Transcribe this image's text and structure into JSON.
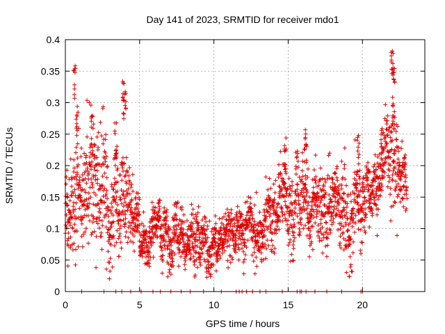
{
  "chart_data": {
    "type": "scatter",
    "title": "Day 141 of 2023, SRMTID for receiver mdo1",
    "xlabel": "GPS time / hours",
    "ylabel": "SRMTID / TECUs",
    "xlim": [
      0,
      24.2
    ],
    "ylim": [
      0,
      0.4
    ],
    "xticks": [
      0,
      5,
      10,
      15,
      20
    ],
    "xtick_labels": [
      "0",
      "5",
      "10",
      "15",
      "20"
    ],
    "yticks": [
      0,
      0.05,
      0.1,
      0.15,
      0.2,
      0.25,
      0.3,
      0.35,
      0.4
    ],
    "ytick_labels": [
      "0",
      "0.05",
      "0.1",
      "0.15",
      "0.2",
      "0.25",
      "0.3",
      "0.35",
      "0.4"
    ],
    "grid": true,
    "marker": "+",
    "color": "#e00000",
    "trend": [
      {
        "x": 0.0,
        "mean": 0.12,
        "spread": 0.04
      },
      {
        "x": 0.5,
        "mean": 0.16,
        "spread": 0.08
      },
      {
        "x": 1.0,
        "mean": 0.17,
        "spread": 0.07
      },
      {
        "x": 1.5,
        "mean": 0.18,
        "spread": 0.08
      },
      {
        "x": 2.0,
        "mean": 0.19,
        "spread": 0.08
      },
      {
        "x": 2.5,
        "mean": 0.16,
        "spread": 0.07
      },
      {
        "x": 3.0,
        "mean": 0.17,
        "spread": 0.08
      },
      {
        "x": 3.5,
        "mean": 0.19,
        "spread": 0.08
      },
      {
        "x": 4.0,
        "mean": 0.17,
        "spread": 0.06
      },
      {
        "x": 4.5,
        "mean": 0.11,
        "spread": 0.04
      },
      {
        "x": 5.0,
        "mean": 0.09,
        "spread": 0.03
      },
      {
        "x": 6.0,
        "mean": 0.09,
        "spread": 0.03
      },
      {
        "x": 7.0,
        "mean": 0.09,
        "spread": 0.035
      },
      {
        "x": 8.0,
        "mean": 0.07,
        "spread": 0.035
      },
      {
        "x": 9.0,
        "mean": 0.085,
        "spread": 0.035
      },
      {
        "x": 10.0,
        "mean": 0.075,
        "spread": 0.03
      },
      {
        "x": 11.0,
        "mean": 0.09,
        "spread": 0.03
      },
      {
        "x": 12.0,
        "mean": 0.095,
        "spread": 0.03
      },
      {
        "x": 13.0,
        "mean": 0.1,
        "spread": 0.035
      },
      {
        "x": 14.0,
        "mean": 0.13,
        "spread": 0.04
      },
      {
        "x": 15.0,
        "mean": 0.14,
        "spread": 0.05
      },
      {
        "x": 16.0,
        "mean": 0.15,
        "spread": 0.05
      },
      {
        "x": 17.0,
        "mean": 0.13,
        "spread": 0.05
      },
      {
        "x": 18.0,
        "mean": 0.14,
        "spread": 0.045
      },
      {
        "x": 19.0,
        "mean": 0.13,
        "spread": 0.05
      },
      {
        "x": 20.0,
        "mean": 0.14,
        "spread": 0.05
      },
      {
        "x": 20.5,
        "mean": 0.155,
        "spread": 0.03
      },
      {
        "x": 21.0,
        "mean": 0.17,
        "spread": 0.04
      },
      {
        "x": 21.5,
        "mean": 0.2,
        "spread": 0.05
      },
      {
        "x": 22.0,
        "mean": 0.22,
        "spread": 0.07
      },
      {
        "x": 22.5,
        "mean": 0.19,
        "spread": 0.05
      },
      {
        "x": 23.0,
        "mean": 0.14,
        "spread": 0.03
      }
    ],
    "peaks": [
      {
        "x": 0.6,
        "y": 0.36
      },
      {
        "x": 0.8,
        "y": 0.3
      },
      {
        "x": 1.8,
        "y": 0.28
      },
      {
        "x": 3.4,
        "y": 0.27
      },
      {
        "x": 3.9,
        "y": 0.335
      },
      {
        "x": 4.0,
        "y": 0.32
      },
      {
        "x": 14.8,
        "y": 0.25
      },
      {
        "x": 16.2,
        "y": 0.26
      },
      {
        "x": 19.7,
        "y": 0.25
      },
      {
        "x": 21.3,
        "y": 0.26
      },
      {
        "x": 22.0,
        "y": 0.385
      },
      {
        "x": 22.1,
        "y": 0.36
      },
      {
        "x": 22.1,
        "y": 0.3
      }
    ],
    "zero_points_x": [
      1.1,
      2.6,
      3.4,
      3.8,
      4.4,
      5.1,
      5.9,
      6.4,
      7.1,
      7.8,
      8.4,
      9.3,
      10.5,
      11.5,
      11.7,
      11.9,
      12.2,
      12.6,
      13.1,
      13.5,
      14.6,
      15.6,
      15.8,
      15.9,
      16.2,
      16.8,
      17.6,
      18.6,
      19.9,
      20.0
    ]
  }
}
